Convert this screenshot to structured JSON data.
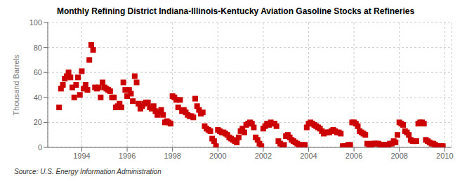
{
  "chart_data": {
    "type": "scatter",
    "title": "Monthly Refining District Indiana-Illinois-Kentucky Aviation Gasoline Stocks at Refineries",
    "ylabel": "Thousand Barrels",
    "annotation": "Source: U.S. Energy Information Administration",
    "color": "#CC0000",
    "marker": "square",
    "grid": true,
    "xlim": [
      1992.5,
      2010.3
    ],
    "xticks": [
      1994,
      1996,
      1998,
      2000,
      2002,
      2004,
      2006,
      2008,
      2010
    ],
    "ylim": [
      0,
      100
    ],
    "yticks": [
      0,
      20,
      40,
      60,
      80,
      100
    ],
    "x": [
      1993.0,
      1993.083,
      1993.167,
      1993.25,
      1993.333,
      1993.417,
      1993.5,
      1993.583,
      1993.667,
      1993.75,
      1993.833,
      1993.917,
      1994.0,
      1994.083,
      1994.167,
      1994.25,
      1994.333,
      1994.417,
      1994.5,
      1994.583,
      1994.667,
      1994.75,
      1994.833,
      1994.917,
      1995.0,
      1995.083,
      1995.167,
      1995.25,
      1995.333,
      1995.417,
      1995.5,
      1995.583,
      1995.667,
      1995.75,
      1995.833,
      1995.917,
      1996.0,
      1996.083,
      1996.167,
      1996.25,
      1996.333,
      1996.417,
      1996.5,
      1996.583,
      1996.667,
      1996.75,
      1996.833,
      1996.917,
      1997.0,
      1997.083,
      1997.167,
      1997.25,
      1997.333,
      1997.417,
      1997.5,
      1997.583,
      1997.667,
      1997.75,
      1997.833,
      1997.917,
      1998.0,
      1998.083,
      1998.167,
      1998.25,
      1998.333,
      1998.417,
      1998.5,
      1998.583,
      1998.667,
      1998.75,
      1998.833,
      1998.917,
      1999.0,
      1999.083,
      1999.167,
      1999.25,
      1999.333,
      1999.417,
      1999.5,
      1999.583,
      1999.667,
      1999.75,
      1999.833,
      1999.917,
      2000.0,
      2000.083,
      2000.167,
      2000.25,
      2000.333,
      2000.417,
      2000.5,
      2000.583,
      2000.667,
      2000.75,
      2000.833,
      2000.917,
      2001.0,
      2001.083,
      2001.167,
      2001.25,
      2001.333,
      2001.417,
      2001.5,
      2001.583,
      2001.667,
      2001.75,
      2001.833,
      2001.917,
      2002.0,
      2002.083,
      2002.167,
      2002.25,
      2002.333,
      2002.417,
      2002.5,
      2002.583,
      2002.667,
      2002.75,
      2002.833,
      2002.917,
      2003.0,
      2003.083,
      2003.167,
      2003.25,
      2003.333,
      2003.417,
      2003.5,
      2003.583,
      2003.667,
      2003.75,
      2003.833,
      2003.917,
      2004.0,
      2004.083,
      2004.167,
      2004.25,
      2004.333,
      2004.417,
      2004.5,
      2004.583,
      2004.667,
      2004.75,
      2004.833,
      2004.917,
      2005.0,
      2005.083,
      2005.167,
      2005.25,
      2005.333,
      2005.417,
      2005.5,
      2005.583,
      2005.667,
      2005.75,
      2005.833,
      2005.917,
      2006.0,
      2006.083,
      2006.167,
      2006.25,
      2006.333,
      2006.417,
      2006.5,
      2006.583,
      2006.667,
      2006.75,
      2006.833,
      2006.917,
      2007.0,
      2007.083,
      2007.167,
      2007.25,
      2007.333,
      2007.417,
      2007.5,
      2007.583,
      2007.667,
      2007.75,
      2007.833,
      2007.917,
      2008.0,
      2008.083,
      2008.167,
      2008.25,
      2008.333,
      2008.417,
      2008.5,
      2008.583,
      2008.667,
      2008.75,
      2008.833,
      2008.917,
      2009.0,
      2009.083,
      2009.167,
      2009.25,
      2009.333,
      2009.417,
      2009.5,
      2009.583,
      2009.667,
      2009.75,
      2009.833,
      2009.917
    ],
    "values": [
      32,
      47,
      50,
      55,
      57,
      60,
      56,
      48,
      40,
      50,
      56,
      42,
      61,
      47,
      50,
      46,
      70,
      82,
      78,
      48,
      47,
      48,
      40,
      52,
      48,
      47,
      46,
      45,
      40,
      40,
      32,
      33,
      35,
      32,
      52,
      46,
      41,
      46,
      43,
      37,
      57,
      52,
      35,
      31,
      33,
      35,
      36,
      36,
      32,
      31,
      33,
      29,
      26,
      28,
      30,
      26,
      20,
      21,
      20,
      19,
      41,
      40,
      38,
      32,
      38,
      29,
      30,
      28,
      26,
      25,
      25,
      24,
      39,
      33,
      30,
      27,
      28,
      17,
      15,
      14,
      13,
      7,
      5,
      1,
      14,
      13,
      12,
      12,
      11,
      10,
      8,
      7,
      6,
      5,
      4,
      8,
      13,
      15,
      12,
      18,
      19,
      20,
      19,
      16,
      8,
      6,
      3,
      1,
      15,
      17,
      19,
      18,
      20,
      19,
      19,
      17,
      5,
      3,
      1,
      2,
      9,
      10,
      8,
      6,
      5,
      4,
      3,
      2,
      1,
      2,
      2,
      16,
      19,
      20,
      19,
      18,
      17,
      16,
      15,
      13,
      11,
      12,
      12,
      12,
      13,
      14,
      13,
      12,
      12,
      11,
      1,
      1,
      1,
      2,
      2,
      20,
      20,
      19,
      17,
      13,
      12,
      11,
      10,
      3,
      2,
      2,
      3,
      3,
      3,
      3,
      2,
      2,
      2,
      2,
      2,
      3,
      3,
      5,
      4,
      10,
      20,
      19,
      18,
      13,
      12,
      10,
      6,
      5,
      5,
      5,
      19,
      20,
      20,
      19,
      6,
      5,
      4,
      3,
      3,
      2,
      1,
      1,
      1,
      1
    ]
  }
}
